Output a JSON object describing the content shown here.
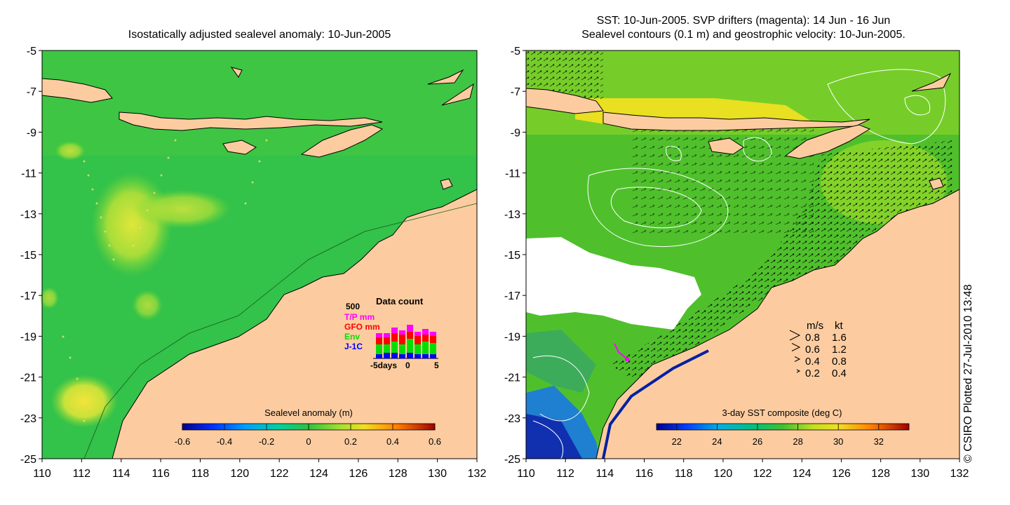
{
  "left_map": {
    "title": "Isostatically adjusted sealevel anomaly: 10-Jun-2005",
    "colorbar": {
      "label": "Sealevel anomaly (m)",
      "ticks": [
        "-0.6",
        "-0.4",
        "-0.2",
        "0",
        "0.2",
        "0.4",
        "0.6"
      ],
      "range": [
        -0.6,
        0.6
      ]
    },
    "inset": {
      "title": "Data count",
      "ymax_label": "500",
      "legend": [
        {
          "label": "T/P mm",
          "color": "#ff00ff"
        },
        {
          "label": "GFO mm",
          "color": "#ff0000"
        },
        {
          "label": "Env",
          "color": "#00e000"
        },
        {
          "label": "J-1C",
          "color": "#0000ff"
        }
      ],
      "xlabel": "-5days",
      "xticks": [
        "0",
        "5"
      ]
    }
  },
  "right_map": {
    "title_line1": "SST: 10-Jun-2005. SVP drifters (magenta): 14 Jun - 16 Jun",
    "title_line2": "Sealevel contours (0.1 m) and geostrophic velocity: 10-Jun-2005.",
    "colorbar": {
      "label": "3-day SST composite (deg C)",
      "ticks": [
        "22",
        "24",
        "26",
        "28",
        "30",
        "32"
      ],
      "range": [
        21.0,
        33.5
      ]
    },
    "velocity_legend": {
      "header_ms": "m/s",
      "header_kt": "kt",
      "rows": [
        {
          "ms": "0.8",
          "kt": "1.6"
        },
        {
          "ms": "0.6",
          "kt": "1.2"
        },
        {
          "ms": "0.4",
          "kt": "0.8"
        },
        {
          "ms": "0.2",
          "kt": "0.4"
        }
      ]
    }
  },
  "axes": {
    "x_ticks": [
      "110",
      "112",
      "114",
      "116",
      "118",
      "120",
      "122",
      "124",
      "126",
      "128",
      "130",
      "132"
    ],
    "y_ticks": [
      "-5",
      "-7",
      "-9",
      "-11",
      "-13",
      "-15",
      "-17",
      "-19",
      "-21",
      "-23",
      "-25"
    ],
    "lon_range": [
      110,
      132
    ],
    "lat_range": [
      -25,
      -5
    ]
  },
  "credit": "© CSIRO Plotted 27-Jul-2010 13:48",
  "colors": {
    "land": "#fccca0",
    "sea_left": "#33c24a",
    "sea_right": "#4fc02c",
    "cloud": "#ffffff"
  }
}
